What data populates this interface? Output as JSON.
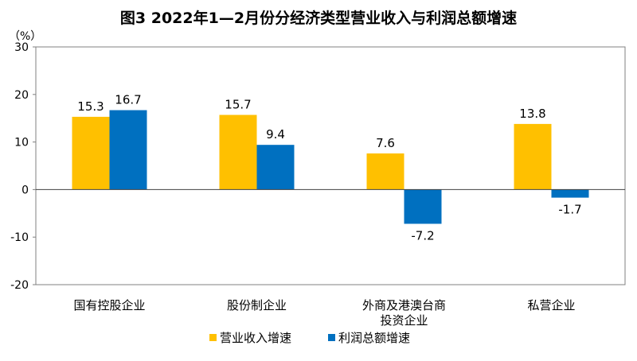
{
  "title": "图3  2022年1—2月份分经济类型营业收入与利润总额增速",
  "unit": "（%）",
  "chart_data": {
    "type": "bar",
    "title": "图3  2022年1—2月份分经济类型营业收入与利润总额增速",
    "xlabel": "",
    "ylabel": "（%）",
    "ylim": [
      -20,
      30
    ],
    "yticks": [
      30,
      20,
      10,
      0,
      -10,
      -20
    ],
    "categories": [
      [
        "国有控股企业"
      ],
      [
        "股份制企业"
      ],
      [
        "外商及港澳台商",
        "投资企业"
      ],
      [
        "私营企业"
      ]
    ],
    "series": [
      {
        "name": "营业收入增速",
        "color": "#FFC000",
        "values": [
          15.3,
          15.7,
          7.6,
          13.8
        ]
      },
      {
        "name": "利润总额增速",
        "color": "#0070C0",
        "values": [
          16.7,
          9.4,
          -7.2,
          -1.7
        ]
      }
    ],
    "legend_position": "bottom",
    "grid": false
  }
}
